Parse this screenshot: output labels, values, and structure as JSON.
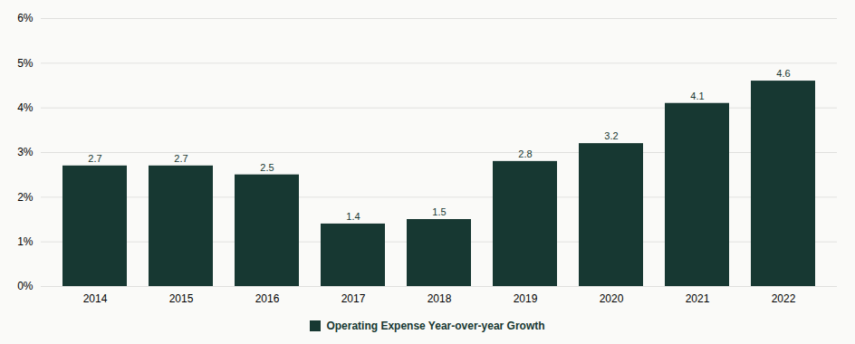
{
  "chart_data": {
    "type": "bar",
    "categories": [
      "2014",
      "2015",
      "2016",
      "2017",
      "2018",
      "2019",
      "2020",
      "2021",
      "2022"
    ],
    "series": [
      {
        "name": "Operating Expense Year-over-year Growth",
        "color": "#173832",
        "values": [
          2.7,
          2.7,
          2.5,
          1.4,
          1.5,
          2.8,
          3.2,
          4.1,
          4.6
        ]
      }
    ],
    "ylim": [
      0,
      6
    ],
    "yticks": [
      {
        "value": 0,
        "label": "0%"
      },
      {
        "value": 1,
        "label": "1%"
      },
      {
        "value": 2,
        "label": "2%"
      },
      {
        "value": 3,
        "label": "3%"
      },
      {
        "value": 4,
        "label": "4%"
      },
      {
        "value": 5,
        "label": "5%"
      },
      {
        "value": 6,
        "label": "6%"
      }
    ],
    "grid": true,
    "data_labels": true,
    "legend": "bottom"
  }
}
